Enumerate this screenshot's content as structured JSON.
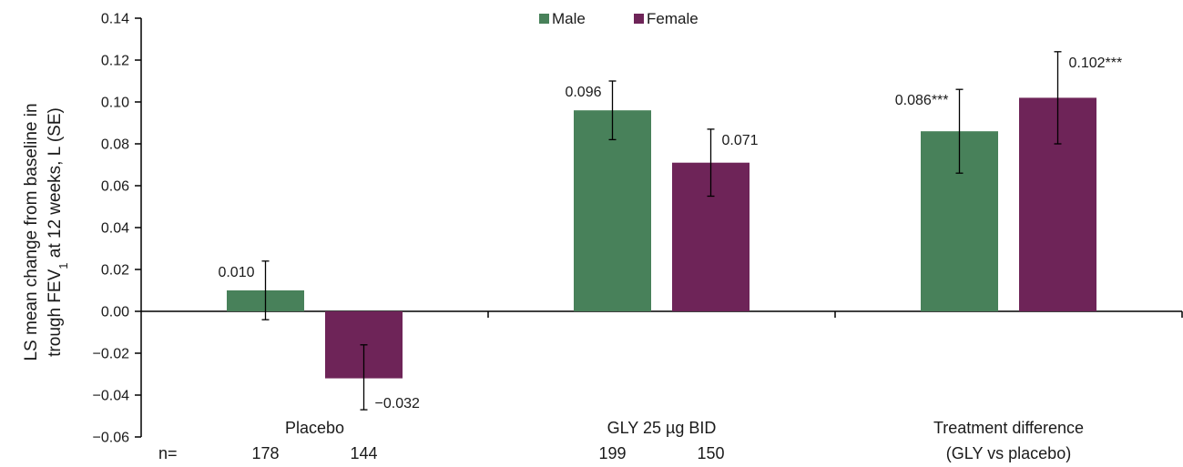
{
  "chart_data": {
    "type": "bar",
    "categories": [
      {
        "lines": [
          "Placebo"
        ],
        "n": [
          "178",
          "144"
        ]
      },
      {
        "lines": [
          "GLY 25 µg BID"
        ],
        "n": [
          "199",
          "150"
        ]
      },
      {
        "lines": [
          "Treatment difference",
          "(GLY vs placebo)"
        ],
        "n": []
      }
    ],
    "n_prefix": "n=",
    "series": [
      {
        "name": "Male",
        "color": "#48815a",
        "values": [
          0.01,
          0.096,
          0.086
        ],
        "err_low": [
          -0.004,
          0.082,
          0.066
        ],
        "err_high": [
          0.024,
          0.11,
          0.106
        ],
        "labels": [
          "0.010",
          "0.096",
          "0.086***"
        ]
      },
      {
        "name": "Female",
        "color": "#6e2458",
        "values": [
          -0.032,
          0.071,
          0.102
        ],
        "err_low": [
          -0.047,
          0.055,
          0.08
        ],
        "err_high": [
          -0.016,
          0.087,
          0.124
        ],
        "labels": [
          "−0.032",
          "0.071",
          "0.102***"
        ]
      }
    ],
    "ylabel_lines": [
      "LS mean change from baseline in",
      "trough FEV",
      "1",
      " at 12 weeks, L (SE)"
    ],
    "ylim": [
      -0.06,
      0.14
    ],
    "yticks": [
      "−0.06",
      "−0.04",
      "−0.02",
      "0.00",
      "0.02",
      "0.04",
      "0.06",
      "0.08",
      "0.10",
      "0.12",
      "0.14"
    ],
    "ytick_values": [
      -0.06,
      -0.04,
      -0.02,
      0.0,
      0.02,
      0.04,
      0.06,
      0.08,
      0.1,
      0.12,
      0.14
    ],
    "legend_position": "top-center",
    "grid": false
  }
}
